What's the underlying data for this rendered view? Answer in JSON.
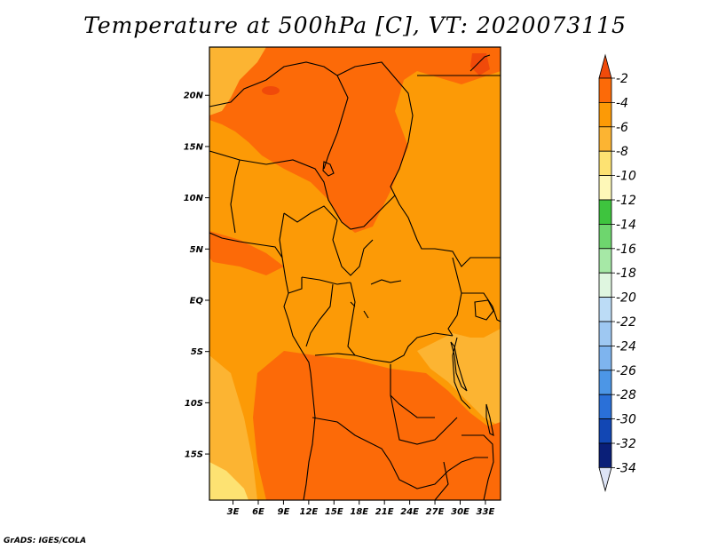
{
  "title": "Temperature at 500hPa [C], VT: 2020073115",
  "credit": "GrADS: IGES/COLA",
  "map": {
    "lat_labels": [
      "20N",
      "15N",
      "10N",
      "5N",
      "EQ",
      "5S",
      "10S",
      "15S"
    ],
    "lat_values": [
      20,
      15,
      10,
      5,
      0,
      -5,
      -10,
      -15
    ],
    "lon_labels": [
      "3E",
      "6E",
      "9E",
      "12E",
      "15E",
      "18E",
      "21E",
      "24E",
      "27E",
      "30E",
      "33E"
    ],
    "lon_values": [
      3,
      6,
      9,
      12,
      15,
      18,
      21,
      24,
      27,
      30,
      33
    ],
    "lat_range": [
      -19.5,
      24.7
    ],
    "lon_range": [
      0.2,
      34.8
    ]
  },
  "colorbar": {
    "labels": [
      "-2",
      "-4",
      "-6",
      "-8",
      "-10",
      "-12",
      "-14",
      "-16",
      "-18",
      "-20",
      "-22",
      "-24",
      "-26",
      "-28",
      "-30",
      "-32",
      "-34"
    ],
    "colors": [
      "#f04a0a",
      "#fc6a08",
      "#fc9a06",
      "#fcb432",
      "#fde272",
      "#fef8b8",
      "#3ec43e",
      "#6ed66e",
      "#a6e8a6",
      "#dff6e0",
      "#bcdcf6",
      "#9ec8f2",
      "#7eb4ee",
      "#4c96e6",
      "#2a70d8",
      "#1247b4",
      "#0a1f78"
    ],
    "top_color": "#f04a0a",
    "bottom_color": "#dde4f6"
  },
  "field_colors": {
    "orange_dark": "#fc6a08",
    "orange": "#fc9a06",
    "orange_light": "#fcb432",
    "yellow": "#fde272",
    "red": "#f04a0a"
  }
}
